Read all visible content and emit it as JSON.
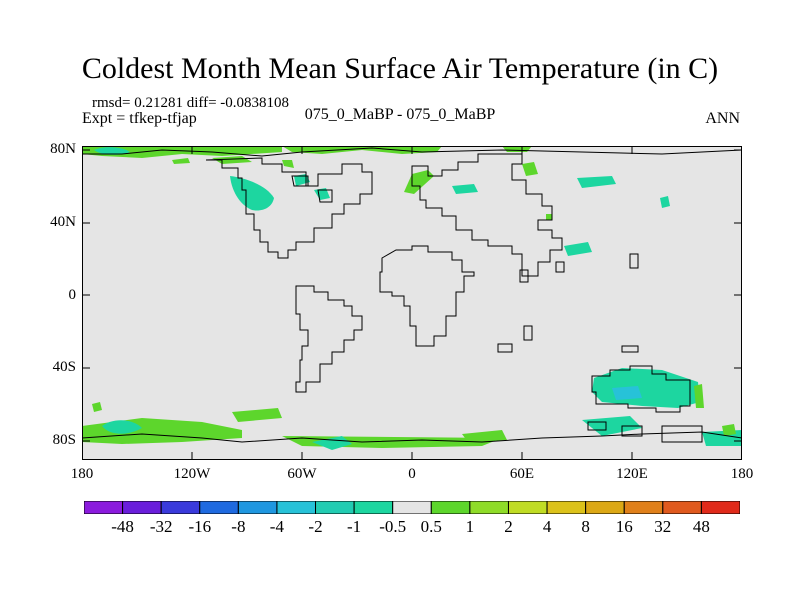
{
  "title": "Coldest Month Mean Surface Air Temperature (in C)",
  "stats_text": "rmsd= 0.21281 diff= -0.0838108",
  "expt_text": "Expt = tfkep-tfjap",
  "center_label": "075_0_MaBP - 075_0_MaBP",
  "season_label": "ANN",
  "map": {
    "background_color": "#e5e5e5",
    "lat_labels": [
      "80N",
      "40N",
      "0",
      "40S",
      "80S"
    ],
    "lon_labels": [
      "180",
      "120W",
      "60W",
      "0",
      "60E",
      "120E",
      "180"
    ]
  },
  "colorbar": {
    "colors": [
      "#8b1bdd",
      "#6a1edb",
      "#3a3adb",
      "#1f6ae0",
      "#1f97e0",
      "#27c2d8",
      "#22ccb2",
      "#1dd6a0",
      "#e5e5e5",
      "#5dd62c",
      "#8fdc28",
      "#c0dc24",
      "#dcc21a",
      "#dca815",
      "#e0801a",
      "#e05a1e",
      "#e02a1a"
    ],
    "labels": [
      "-48",
      "-32",
      "-16",
      "-8",
      "-4",
      "-2",
      "-1",
      "-0.5",
      "0.5",
      "1",
      "2",
      "4",
      "8",
      "16",
      "32",
      "48"
    ]
  }
}
